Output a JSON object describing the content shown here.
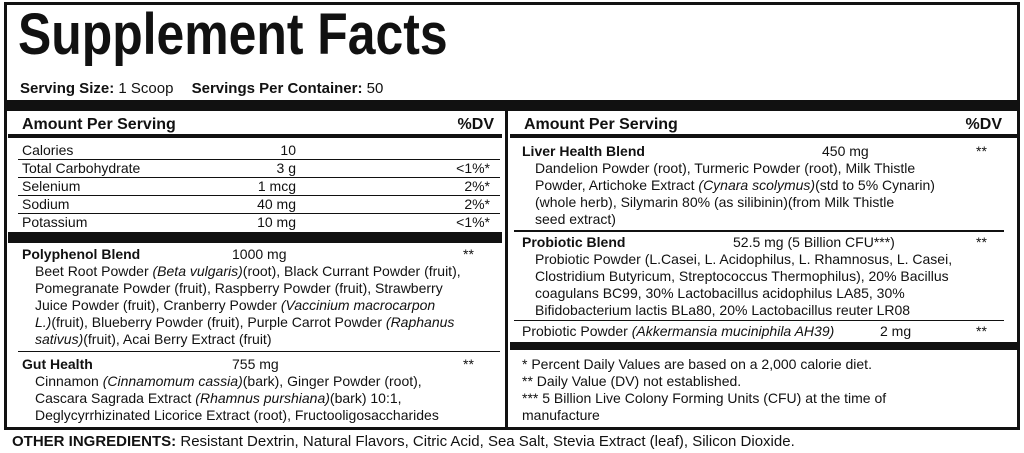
{
  "header": {
    "title": "Supplement Facts",
    "serving_size_label": "Serving Size:",
    "serving_size": "1 Scoop",
    "servings_label": "Servings Per Container:",
    "servings": "50"
  },
  "left": {
    "heading": {
      "amount": "Amount Per Serving",
      "dv": "%DV"
    },
    "nutrients": [
      {
        "name": "Calories",
        "amount": "10"
      },
      {
        "name": "Total Carbohydrate",
        "amount": "3 g",
        "dv": "<1%*"
      },
      {
        "name": "Selenium",
        "amount": "1 mcg",
        "dv": "2%*"
      },
      {
        "name": "Sodium",
        "amount": "40 mg",
        "dv": "2%*"
      },
      {
        "name": "Potassium",
        "amount": "10 mg",
        "dv": "<1%*"
      }
    ],
    "blends": [
      {
        "name": "Polyphenol Blend",
        "amount": "1000 mg",
        "dv": "**",
        "bold": true,
        "lines": [
          [
            "Beet Root Powder ",
            {
              "italic": "(Beta vulgaris)"
            },
            "(root), Black Currant Powder (fruit),"
          ],
          [
            "Pomegranate Powder (fruit), Raspberry Powder (fruit), Strawberry"
          ],
          [
            "Juice Powder (fruit), Cranberry Powder ",
            {
              "italic": "(Vaccinium macrocarpon"
            }
          ],
          [
            {
              "italic": "L.)"
            },
            "(fruit), Blueberry Powder (fruit), Purple Carrot Powder ",
            {
              "italic": "(Raphanus"
            }
          ],
          [
            {
              "italic": "sativus)"
            },
            "(fruit), Acai Berry Extract (fruit)"
          ]
        ]
      },
      {
        "name": "Gut Health",
        "amount": "755 mg",
        "dv": "**",
        "bold": true,
        "lines": [
          [
            "Cinnamon ",
            {
              "italic": "(Cinnamomum cassia)"
            },
            "(bark), Ginger Powder (root),"
          ],
          [
            "Cascara Sagrada Extract ",
            {
              "italic": "(Rhamnus purshiana)"
            },
            "(bark) 10:1,"
          ],
          [
            "Deglycyrrhizinated Licorice Extract (root), Fructooligosaccharides"
          ]
        ]
      }
    ]
  },
  "right": {
    "heading": {
      "amount": "Amount Per Serving",
      "dv": "%DV"
    },
    "blends": [
      {
        "name": "Liver Health Blend",
        "amount": "450 mg",
        "dv": "**",
        "bold": true,
        "lines": [
          [
            "Dandelion Powder (root), Turmeric Powder (root), Milk Thistle"
          ],
          [
            "Powder, Artichoke Extract ",
            {
              "italic": "(Cynara scolymus)"
            },
            "(std to 5% Cynarin)"
          ],
          [
            "(whole herb), Silymarin 80% (as silibinin)(from Milk Thistle"
          ],
          [
            "seed extract)"
          ]
        ]
      },
      {
        "name": "Probiotic Blend",
        "amount": "52.5 mg (5 Billion CFU***)",
        "dv": "**",
        "bold": true,
        "lines": [
          [
            "Probiotic Powder (L.Casei, L. Acidophilus, L. Rhamnosus, L. Casei,"
          ],
          [
            "Clostridium Butyricum, Streptococcus Thermophilus), 20% Bacillus"
          ],
          [
            "coagulans BC99, 30% Lactobacillus acidophilus LA85, 30%"
          ],
          [
            "Bifidobacterium lactis BLa80, 20% Lactobacillus reuter LR08"
          ]
        ]
      },
      {
        "name": "Probiotic Powder ",
        "name_italic": "(Akkermansia muciniphila AH39)",
        "amount": "2 mg",
        "dv": "**",
        "bold": false,
        "lines": []
      }
    ],
    "footnotes": [
      "* Percent Daily Values are based on a 2,000 calorie diet.",
      "** Daily Value (DV) not established.",
      "*** 5 Billion Live Colony Forming Units (CFU) at the time of",
      "manufacture"
    ]
  },
  "other_ingredients": {
    "label": "OTHER INGREDIENTS:",
    "text": " Resistant Dextrin, Natural Flavors, Citric Acid, Sea Salt, Stevia Extract (leaf), Silicon Dioxide."
  }
}
